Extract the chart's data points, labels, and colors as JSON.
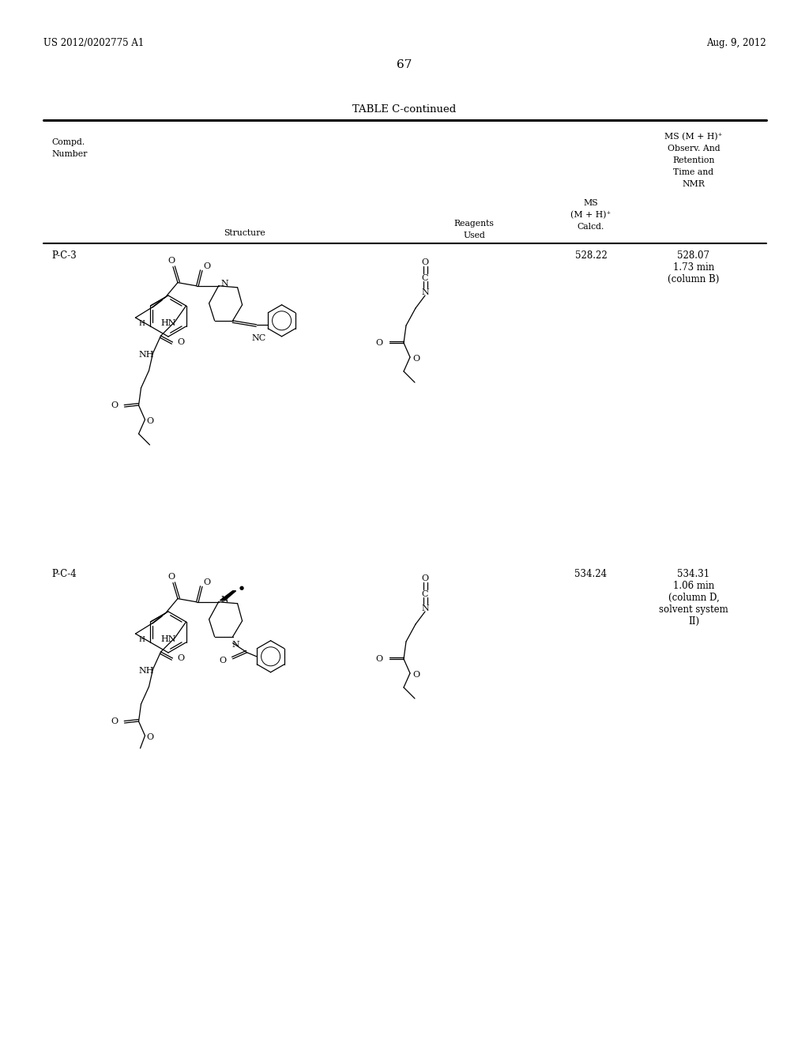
{
  "background_color": "#ffffff",
  "page_number": "67",
  "header_left": "US 2012/0202775 A1",
  "header_right": "Aug. 9, 2012",
  "table_title": "TABLE C-continued",
  "row1_id": "P-C-3",
  "row1_ms_calcd": "528.22",
  "row1_ms_obs_line1": "528.07",
  "row1_ms_obs_line2": "1.73 min",
  "row1_ms_obs_line3": "(column B)",
  "row2_id": "P-C-4",
  "row2_ms_calcd": "534.24",
  "row2_ms_obs_line1": "534.31",
  "row2_ms_obs_line2": "1.06 min",
  "row2_ms_obs_line3": "(column D,",
  "row2_ms_obs_line4": "solvent system",
  "row2_ms_obs_line5": "II)"
}
